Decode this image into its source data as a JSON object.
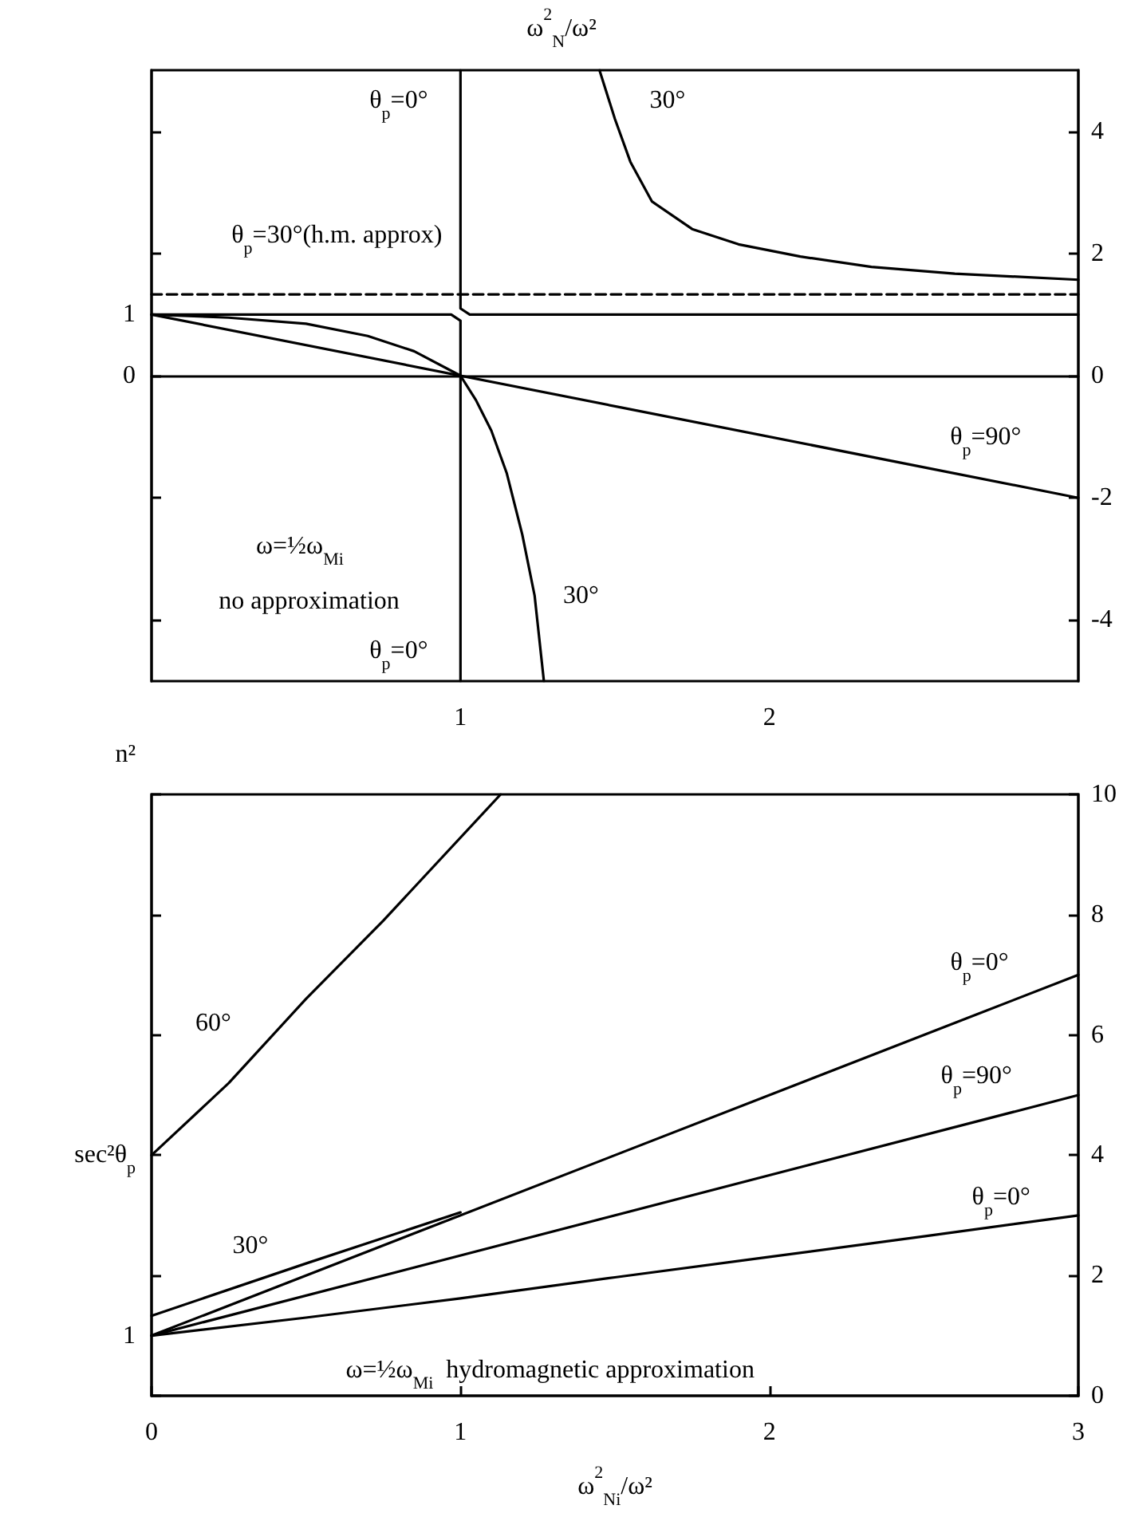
{
  "chart_data": [
    {
      "type": "line",
      "xlabel": "ω$^{2}$$_{N}$/ω²",
      "xlim": [
        0,
        3
      ],
      "xticks": [
        1,
        2
      ],
      "ylim": [
        -5,
        5
      ],
      "yticks": [
        -4,
        -2,
        0,
        2,
        4
      ],
      "series": [
        {
          "color": "#000000",
          "x": [
            0,
            3
          ],
          "values": [
            1,
            -2
          ]
        },
        {
          "color": "#000000",
          "x": [
            0,
            0.25,
            0.5,
            0.7,
            0.85,
            1,
            1.05,
            1.1,
            1.15,
            1.2,
            1.24,
            1.27
          ],
          "values": [
            1,
            0.95,
            0.85,
            0.65,
            0.4,
            0,
            -0.4,
            -0.9,
            -1.6,
            -2.6,
            -3.6,
            -5
          ]
        },
        {
          "color": "#000000",
          "x": [
            1.45,
            1.5,
            1.55,
            1.62,
            1.75,
            1.9,
            2.1,
            2.33,
            2.6,
            3
          ],
          "values": [
            5,
            4.2,
            3.5,
            2.85,
            2.4,
            2.15,
            1.95,
            1.78,
            1.67,
            1.57
          ]
        },
        {
          "color": "#000000",
          "x": [
            0,
            0.97,
            1,
            1
          ],
          "values": [
            1,
            1,
            0.9,
            -5
          ]
        },
        {
          "color": "#000000",
          "x": [
            1,
            1,
            1.03,
            3
          ],
          "values": [
            5,
            1.1,
            1,
            1
          ]
        },
        {
          "color": "#000000",
          "line_style": "dashed",
          "x": [
            0,
            3
          ],
          "values": [
            1.33,
            1.33
          ]
        }
      ],
      "annotations": [
        {
          "text": "1",
          "x": 0,
          "y": 1
        },
        "0",
        {
          "text": "θ$_{p}$=0°",
          "x": 0.8,
          "y": 4.5
        },
        {
          "text": "30°",
          "x": 1.67,
          "y": 4.5
        },
        "θ$_{p}$=30°(h.m. approx)",
        "θ$_{p}$=90°",
        "ω=½ω$_{Mi}$",
        "no approximation",
        {
          "text": "30°",
          "x": 1.39,
          "y": -3.6
        },
        {
          "text": "θ$_{p}$=0°",
          "x": 0.8,
          "y": -4.5
        }
      ]
    },
    {
      "type": "line",
      "xlabel": "ω$^{2}$$_{Ni}$/ω²",
      "ylabel": "n²",
      "xlim": [
        0,
        3
      ],
      "xticks": [
        0,
        1,
        2,
        3
      ],
      "ylim": [
        0,
        10
      ],
      "yticks": [
        0,
        2,
        4,
        6,
        8,
        10
      ],
      "series": [
        {
          "color": "#000000",
          "x": [
            0,
            3
          ],
          "values": [
            1,
            7
          ]
        },
        {
          "color": "#000000",
          "x": [
            0,
            3
          ],
          "values": [
            1,
            5
          ]
        },
        {
          "color": "#000000",
          "x": [
            0,
            0.5,
            1,
            1.5,
            2,
            2.5,
            3
          ],
          "values": [
            1,
            1.3,
            1.62,
            1.97,
            2.31,
            2.65,
            3
          ]
        },
        {
          "color": "#000000",
          "x": [
            0,
            0.25,
            0.5,
            0.75,
            1.13
          ],
          "values": [
            4,
            5.2,
            6.6,
            7.9,
            10
          ]
        },
        {
          "color": "#000000",
          "x": [
            0,
            0.5,
            1
          ],
          "values": [
            1.33,
            2.2,
            3.05
          ]
        }
      ],
      "annotations": [
        {
          "text": "1",
          "x": 0,
          "y": 1
        },
        {
          "text": "sec²θ$_{p}$",
          "x": 0,
          "y": 4
        },
        {
          "text": "60°",
          "x": 0.2,
          "y": 6.2
        },
        {
          "text": "30°",
          "x": 0.32,
          "y": 2.5
        },
        {
          "text": "θ$_{p}$=0°",
          "x": 2.68,
          "y": 7.2
        },
        "θ$_{p}$=90°",
        {
          "text": "θ$_{p}$=0°",
          "x": 2.75,
          "y": 3.3
        },
        "ω=½ω$_{Mi}$  hydromagnetic approximation"
      ]
    }
  ]
}
